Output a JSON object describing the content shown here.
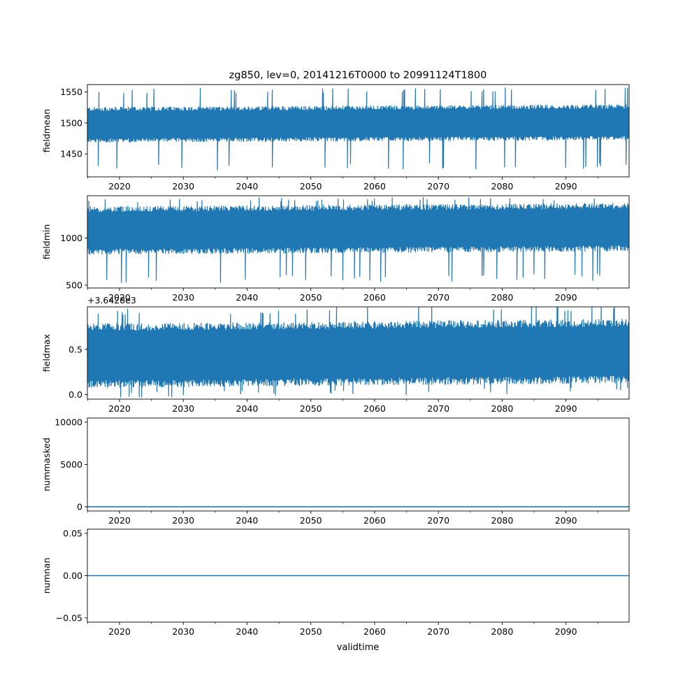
{
  "figure": {
    "title": "zg850, lev=0, 20141216T0000 to 20991124T1800",
    "xlabel": "validtime",
    "series_color": "#1f77b4"
  },
  "chart_data": [
    {
      "type": "line",
      "ylabel": "fieldmean",
      "xlim": [
        2014.96,
        2099.9
      ],
      "ylim": [
        1413,
        1562
      ],
      "yticks": [
        1450,
        1500,
        1550
      ],
      "ytick_labels": [
        "1450",
        "1500",
        "1550"
      ],
      "xticks": [
        2020,
        2030,
        2040,
        2050,
        2060,
        2070,
        2080,
        2090
      ],
      "xtick_labels": [
        "2020",
        "2030",
        "2040",
        "2050",
        "2060",
        "2070",
        "2080",
        "2090"
      ],
      "offset_text": "",
      "series": [
        {
          "name": "fieldmean",
          "baseline": 1497,
          "band_low": 1470,
          "band_high": 1525,
          "min": 1422,
          "max": 1556
        }
      ]
    },
    {
      "type": "line",
      "ylabel": "fieldmin",
      "xlim": [
        2014.96,
        2099.9
      ],
      "ylim": [
        470,
        1450
      ],
      "yticks": [
        500,
        1000
      ],
      "ytick_labels": [
        "500",
        "1000"
      ],
      "xticks": [
        2020,
        2030,
        2040,
        2050,
        2060,
        2070,
        2080,
        2090
      ],
      "xtick_labels": [
        "2020",
        "2030",
        "2040",
        "2050",
        "2060",
        "2070",
        "2080",
        "2090"
      ],
      "offset_text": "",
      "series": [
        {
          "name": "fieldmin",
          "baseline": 1080,
          "band_low": 830,
          "band_high": 1320,
          "min": 510,
          "max": 1420
        }
      ]
    },
    {
      "type": "line",
      "ylabel": "fieldmax",
      "xlim": [
        2014.96,
        2099.9
      ],
      "ylim": [
        -0.05,
        0.97
      ],
      "yticks": [
        0.0,
        0.5
      ],
      "ytick_labels": [
        "0.0",
        "0.5"
      ],
      "xticks": [
        2020,
        2030,
        2040,
        2050,
        2060,
        2070,
        2080,
        2090
      ],
      "xtick_labels": [
        "2020",
        "2030",
        "2040",
        "2050",
        "2060",
        "2070",
        "2080",
        "2090"
      ],
      "offset_text": "+3.6428e3",
      "series": [
        {
          "name": "fieldmax",
          "baseline": 0.43,
          "band_low": 0.1,
          "band_high": 0.78,
          "min": -0.04,
          "max": 0.95
        }
      ]
    },
    {
      "type": "line",
      "ylabel": "nummasked",
      "xlim": [
        2014.96,
        2099.9
      ],
      "ylim": [
        -500,
        10500
      ],
      "yticks": [
        0,
        5000,
        10000
      ],
      "ytick_labels": [
        "0",
        "5000",
        "10000"
      ],
      "xticks": [
        2020,
        2030,
        2040,
        2050,
        2060,
        2070,
        2080,
        2090
      ],
      "xtick_labels": [
        "2020",
        "2030",
        "2040",
        "2050",
        "2060",
        "2070",
        "2080",
        "2090"
      ],
      "offset_text": "",
      "series": [
        {
          "name": "nummasked",
          "constant": 0
        }
      ]
    },
    {
      "type": "line",
      "ylabel": "numnan",
      "xlim": [
        2014.96,
        2099.9
      ],
      "ylim": [
        -0.055,
        0.055
      ],
      "yticks": [
        -0.05,
        0.0,
        0.05
      ],
      "ytick_labels": [
        "−0.05",
        "0.00",
        "0.05"
      ],
      "xticks": [
        2020,
        2030,
        2040,
        2050,
        2060,
        2070,
        2080,
        2090
      ],
      "xtick_labels": [
        "2020",
        "2030",
        "2040",
        "2050",
        "2060",
        "2070",
        "2080",
        "2090"
      ],
      "offset_text": "",
      "series": [
        {
          "name": "numnan",
          "constant": 0
        }
      ]
    }
  ]
}
